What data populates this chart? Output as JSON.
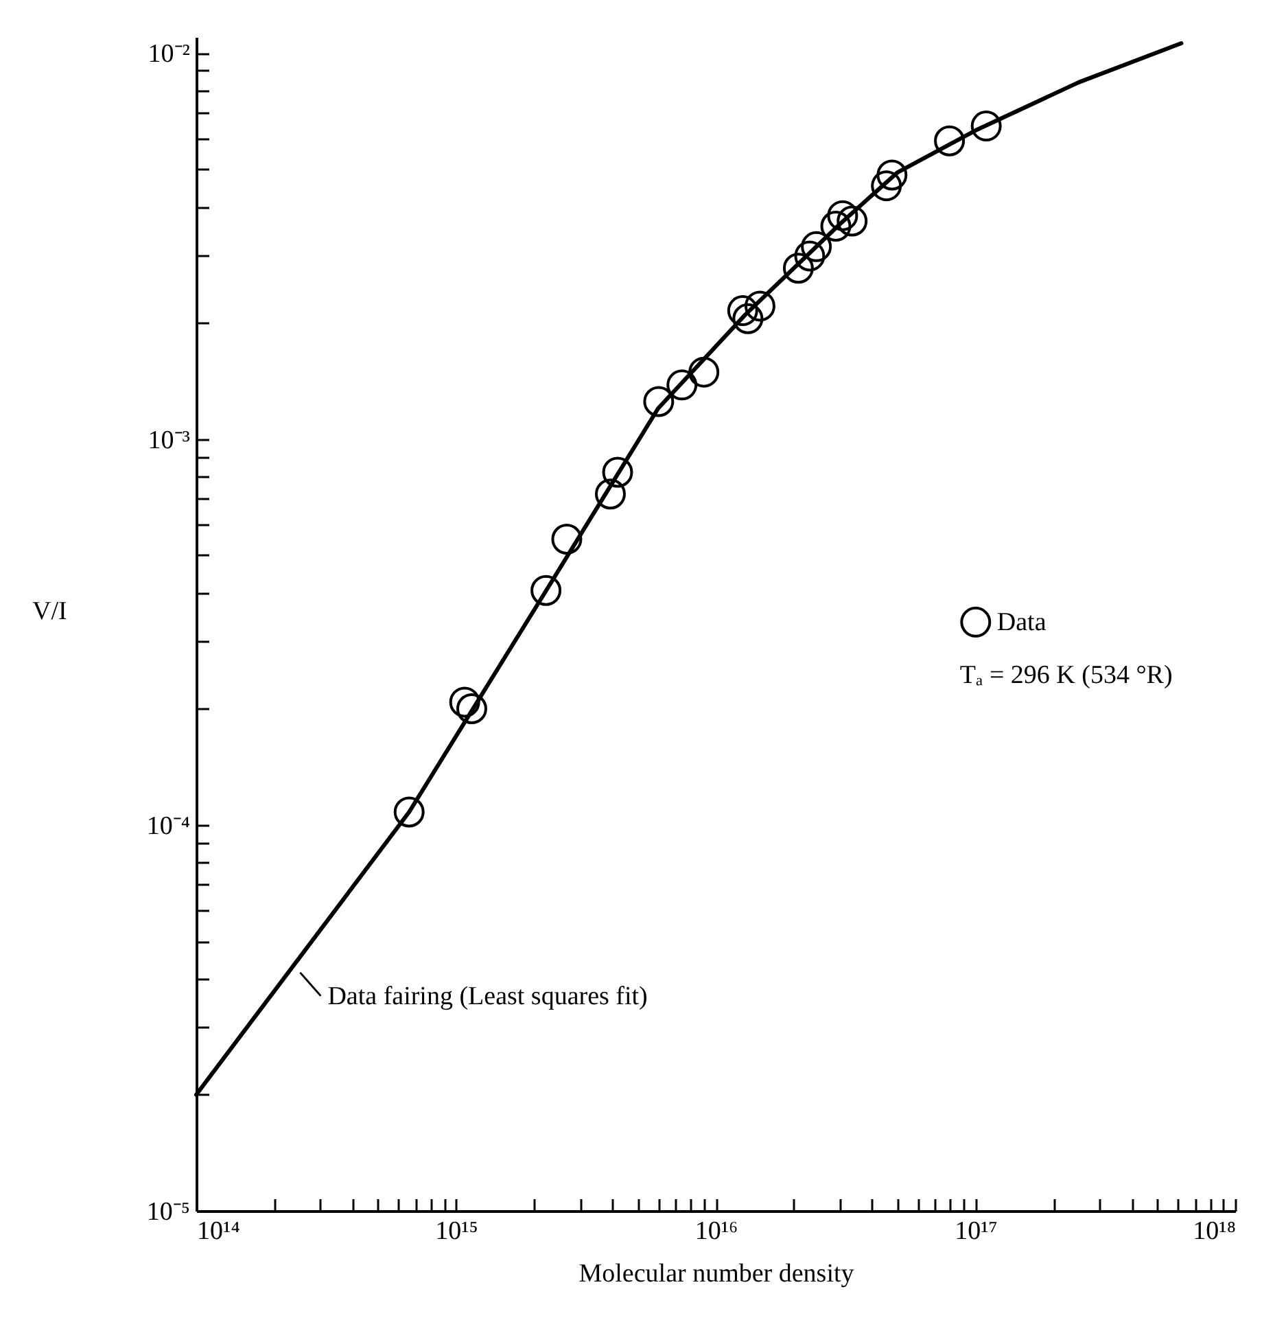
{
  "chart_data": {
    "type": "scatter",
    "xlabel": "Molecular number density",
    "ylabel": "V/I",
    "log": "xy",
    "legend": "right",
    "xlim": [
      100000000000000.0,
      1e+18
    ],
    "ylim": [
      1e-05,
      0.011
    ],
    "xticks": [
      {
        "value": 100000000000000.0,
        "label": "10¹⁴"
      },
      {
        "value": 200000000000000.0,
        "label": null
      },
      {
        "value": 300000000000000.0,
        "label": null
      },
      {
        "value": 400000000000000.0,
        "label": null
      },
      {
        "value": 500000000000000.0,
        "label": null
      },
      {
        "value": 600000000000000.0,
        "label": null
      },
      {
        "value": 700000000000000.0,
        "label": null
      },
      {
        "value": 800000000000000.0,
        "label": null
      },
      {
        "value": 900000000000000.0,
        "label": null
      },
      {
        "value": 1000000000000000.0,
        "label": "10¹⁵"
      },
      {
        "value": 2000000000000000.0,
        "label": null
      },
      {
        "value": 3000000000000000.0,
        "label": null
      },
      {
        "value": 4000000000000000.0,
        "label": null
      },
      {
        "value": 5000000000000000.0,
        "label": null
      },
      {
        "value": 6000000000000000.0,
        "label": null
      },
      {
        "value": 7000000000000000.0,
        "label": null
      },
      {
        "value": 8000000000000000.0,
        "label": null
      },
      {
        "value": 9000000000000000.0,
        "label": null
      },
      {
        "value": 1e+16,
        "label": "10¹⁶"
      },
      {
        "value": 2e+16,
        "label": null
      },
      {
        "value": 3e+16,
        "label": null
      },
      {
        "value": 4e+16,
        "label": null
      },
      {
        "value": 5e+16,
        "label": null
      },
      {
        "value": 6e+16,
        "label": null
      },
      {
        "value": 7e+16,
        "label": null
      },
      {
        "value": 8e+16,
        "label": null
      },
      {
        "value": 9e+16,
        "label": null
      },
      {
        "value": 1e+17,
        "label": "10¹⁷"
      },
      {
        "value": 2e+17,
        "label": null
      },
      {
        "value": 3e+17,
        "label": null
      },
      {
        "value": 4e+17,
        "label": null
      },
      {
        "value": 5e+17,
        "label": null
      },
      {
        "value": 6e+17,
        "label": null
      },
      {
        "value": 7e+17,
        "label": null
      },
      {
        "value": 8e+17,
        "label": null
      },
      {
        "value": 9e+17,
        "label": null
      },
      {
        "value": 1e+18,
        "label": "10¹⁸"
      }
    ],
    "yticks": [
      {
        "value": 1e-05,
        "label": "10⁻⁵"
      },
      {
        "value": 2e-05,
        "label": null
      },
      {
        "value": 3e-05,
        "label": null
      },
      {
        "value": 4e-05,
        "label": null
      },
      {
        "value": 5e-05,
        "label": null
      },
      {
        "value": 6e-05,
        "label": null
      },
      {
        "value": 7e-05,
        "label": null
      },
      {
        "value": 8e-05,
        "label": null
      },
      {
        "value": 9e-05,
        "label": null
      },
      {
        "value": 0.0001,
        "label": "10⁻⁴"
      },
      {
        "value": 0.0002,
        "label": null
      },
      {
        "value": 0.0003,
        "label": null
      },
      {
        "value": 0.0004,
        "label": null
      },
      {
        "value": 0.0005,
        "label": null
      },
      {
        "value": 0.0006,
        "label": null
      },
      {
        "value": 0.0007,
        "label": null
      },
      {
        "value": 0.0008,
        "label": null
      },
      {
        "value": 0.0009,
        "label": null
      },
      {
        "value": 0.001,
        "label": "10⁻³"
      },
      {
        "value": 0.002,
        "label": null
      },
      {
        "value": 0.003,
        "label": null
      },
      {
        "value": 0.004,
        "label": null
      },
      {
        "value": 0.005,
        "label": null
      },
      {
        "value": 0.006,
        "label": null
      },
      {
        "value": 0.007,
        "label": null
      },
      {
        "value": 0.008,
        "label": null
      },
      {
        "value": 0.009,
        "label": null
      },
      {
        "value": 0.01,
        "label": "10⁻²"
      }
    ],
    "series": [
      {
        "name": "Data",
        "color": "#000000",
        "marker": "circle",
        "x": [
          660000000000000.0,
          1080000000000000.0,
          1150000000000000.0,
          2220000000000000.0,
          2670000000000000.0,
          3930000000000000.0,
          4190000000000000.0,
          6030000000000000.0,
          7410000000000000.0,
          9000000000000000.0,
          1.27e+16,
          1.33e+16,
          1.48e+16,
          2.08e+16,
          2.3e+16,
          2.44e+16,
          2.9e+16,
          3.08e+16,
          3.35e+16,
          4.54e+16,
          4.77e+16,
          7.94e+16,
          1.1e+17
        ],
        "values": [
          0.000108,
          0.000208,
          0.0002,
          0.000405,
          0.00055,
          0.00072,
          0.00082,
          0.00125,
          0.00138,
          0.00149,
          0.00215,
          0.00205,
          0.00221,
          0.00277,
          0.00298,
          0.00315,
          0.00356,
          0.00379,
          0.00367,
          0.00453,
          0.00483,
          0.00592,
          0.00647
        ]
      },
      {
        "type": "line",
        "color": "#000000",
        "x": [
          100000000000000.0,
          660000000000000.0,
          2200000000000000.0,
          6000000000000000.0,
          1.3e+16,
          3e+16,
          5e+16,
          1e+17,
          2.5e+17,
          6.2e+17
        ],
        "values": [
          2e-05,
          0.000108,
          0.0004,
          0.0012,
          0.0021,
          0.0036,
          0.0049,
          0.0063,
          0.0084,
          0.0106
        ]
      }
    ],
    "annotations": [
      "Tₐ = 296 K (534 °R)",
      "Data fairing (Least squares fit)"
    ]
  }
}
